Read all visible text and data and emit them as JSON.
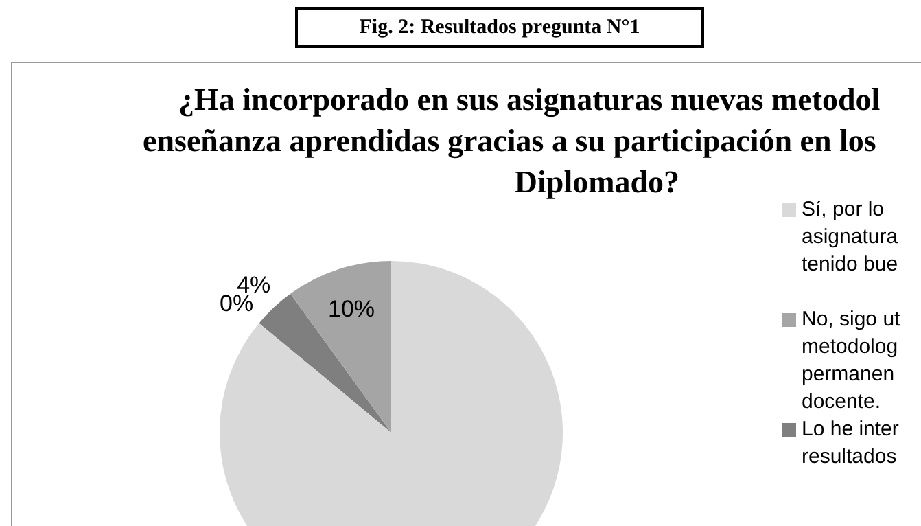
{
  "chart_data": {
    "type": "pie",
    "title": "¿Ha incorporado en sus asignaturas nuevas metodol\nenseñanza aprendidas gracias a su participación en los\nDiplomado?",
    "annotations": [
      "Fig. 2: Resultados pregunta N°1"
    ],
    "categories": [
      "Sí, por lo\nasignatura\ntenido bue",
      "No, sigo ut\nmetodolog\npermanen\ndocente.",
      "Lo he inter\nresultados",
      null
    ],
    "values": [
      86,
      10,
      4,
      0
    ],
    "colors": [
      "#d9d9d9",
      "#a5a5a5",
      "#7f7f7f",
      "#595959"
    ],
    "value_labels": [
      null,
      "10%",
      "4%",
      "0%"
    ],
    "legend": "right"
  }
}
